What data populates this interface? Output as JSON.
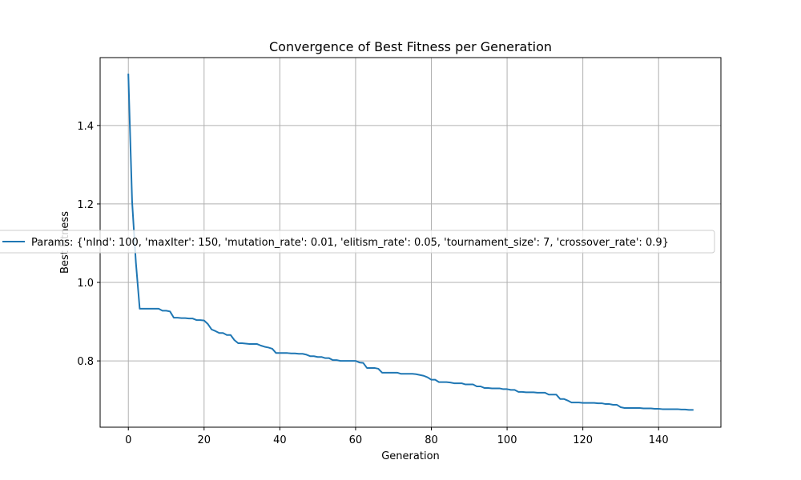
{
  "chart_data": {
    "type": "line",
    "title": "Convergence of Best Fitness per Generation",
    "xlabel": "Generation",
    "ylabel": "Best Fitness",
    "xlim": [
      -7.45,
      156.45
    ],
    "ylim": [
      0.631,
      1.573
    ],
    "xticks": [
      0,
      20,
      40,
      60,
      80,
      100,
      120,
      140
    ],
    "yticks": [
      0.8,
      1.0,
      1.2,
      1.4
    ],
    "grid": true,
    "legend_position": "center-left",
    "colors": {
      "series": "#1f77b4",
      "grid": "#b0b0b0"
    },
    "series": [
      {
        "name": "Params: {'nInd': 100, 'maxIter': 150, 'mutation_rate': 0.01, 'elitism_rate': 0.05, 'tournament_size': 7, 'crossover_rate': 0.9}",
        "x": [
          0,
          1,
          2,
          3,
          4,
          5,
          6,
          7,
          8,
          9,
          10,
          11,
          12,
          13,
          14,
          15,
          16,
          17,
          18,
          19,
          20,
          21,
          22,
          23,
          24,
          25,
          26,
          27,
          28,
          29,
          30,
          31,
          32,
          33,
          34,
          35,
          36,
          37,
          38,
          39,
          40,
          41,
          42,
          43,
          44,
          45,
          46,
          47,
          48,
          49,
          50,
          51,
          52,
          53,
          54,
          55,
          56,
          57,
          58,
          59,
          60,
          61,
          62,
          63,
          64,
          65,
          66,
          67,
          68,
          69,
          70,
          71,
          72,
          73,
          74,
          75,
          76,
          77,
          78,
          79,
          80,
          81,
          82,
          83,
          84,
          85,
          86,
          87,
          88,
          89,
          90,
          91,
          92,
          93,
          94,
          95,
          96,
          97,
          98,
          99,
          100,
          101,
          102,
          103,
          104,
          105,
          106,
          107,
          108,
          109,
          110,
          111,
          112,
          113,
          114,
          115,
          116,
          117,
          118,
          119,
          120,
          121,
          122,
          123,
          124,
          125,
          126,
          127,
          128,
          129,
          130,
          131,
          132,
          133,
          134,
          135,
          136,
          137,
          138,
          139,
          140,
          141,
          142,
          143,
          144,
          145,
          146,
          147,
          148,
          149
        ],
        "y": [
          1.53,
          1.205,
          1.05,
          0.933,
          0.933,
          0.933,
          0.933,
          0.933,
          0.933,
          0.928,
          0.928,
          0.926,
          0.91,
          0.91,
          0.909,
          0.909,
          0.908,
          0.908,
          0.904,
          0.904,
          0.903,
          0.894,
          0.88,
          0.876,
          0.871,
          0.871,
          0.866,
          0.866,
          0.853,
          0.845,
          0.845,
          0.844,
          0.843,
          0.843,
          0.843,
          0.839,
          0.836,
          0.834,
          0.831,
          0.82,
          0.82,
          0.82,
          0.82,
          0.819,
          0.819,
          0.818,
          0.818,
          0.816,
          0.812,
          0.812,
          0.81,
          0.81,
          0.807,
          0.807,
          0.802,
          0.802,
          0.8,
          0.8,
          0.8,
          0.8,
          0.8,
          0.796,
          0.795,
          0.782,
          0.782,
          0.782,
          0.78,
          0.77,
          0.77,
          0.77,
          0.77,
          0.77,
          0.767,
          0.767,
          0.767,
          0.767,
          0.766,
          0.764,
          0.762,
          0.758,
          0.752,
          0.752,
          0.746,
          0.746,
          0.746,
          0.745,
          0.743,
          0.743,
          0.743,
          0.74,
          0.74,
          0.74,
          0.735,
          0.735,
          0.731,
          0.731,
          0.73,
          0.73,
          0.73,
          0.728,
          0.728,
          0.726,
          0.726,
          0.721,
          0.721,
          0.72,
          0.72,
          0.72,
          0.719,
          0.719,
          0.719,
          0.714,
          0.714,
          0.714,
          0.703,
          0.703,
          0.699,
          0.694,
          0.694,
          0.694,
          0.693,
          0.693,
          0.693,
          0.693,
          0.692,
          0.692,
          0.69,
          0.69,
          0.688,
          0.688,
          0.682,
          0.68,
          0.68,
          0.68,
          0.68,
          0.68,
          0.679,
          0.679,
          0.679,
          0.678,
          0.678,
          0.677,
          0.677,
          0.677,
          0.677,
          0.677,
          0.676,
          0.676,
          0.675,
          0.675
        ]
      }
    ]
  }
}
